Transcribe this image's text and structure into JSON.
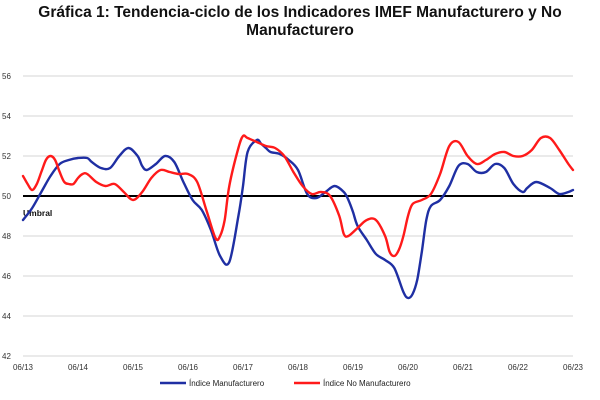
{
  "chart_data": {
    "type": "line",
    "title_line1": "Gráfica 1: Tendencia-ciclo de los Indicadores IMEF Manufacturero y No",
    "title_line2": "Manufacturero",
    "ylim": [
      42,
      56
    ],
    "y_ticks": [
      "42",
      "44",
      "46",
      "48",
      "50",
      "52",
      "54",
      "56"
    ],
    "x_tick_labels": [
      "06/13",
      "06/14",
      "06/15",
      "06/16",
      "06/17",
      "06/18",
      "06/19",
      "06/20",
      "06/21",
      "06/22",
      "06/23"
    ],
    "x_range": [
      0,
      120
    ],
    "grid": true,
    "threshold": {
      "value": 50,
      "label": "Umbral"
    },
    "legend_position": "bottom",
    "series": [
      {
        "name": "Índice Manufacturero",
        "color": "#1f2fa3",
        "x": [
          0,
          2,
          4,
          6,
          8,
          10,
          12,
          14,
          15,
          17,
          19,
          21,
          23,
          25,
          26,
          27,
          29,
          31,
          33,
          35,
          37,
          39,
          41,
          43,
          45,
          47,
          48,
          49,
          51,
          52,
          53,
          54,
          56,
          58,
          60,
          62,
          64,
          66,
          68,
          70,
          71,
          72,
          73,
          75,
          77,
          79,
          81,
          83,
          84,
          85,
          86,
          87,
          88,
          89,
          91,
          93,
          95,
          97,
          99,
          101,
          103,
          105,
          107,
          109,
          110,
          112,
          115,
          117,
          119,
          120
        ],
        "y": [
          48.8,
          49.4,
          50.2,
          51,
          51.6,
          51.8,
          51.9,
          51.9,
          51.7,
          51.4,
          51.4,
          52,
          52.4,
          52,
          51.5,
          51.3,
          51.6,
          52,
          51.7,
          50.7,
          49.8,
          49.3,
          48.3,
          47,
          46.7,
          49,
          50.5,
          52.2,
          52.8,
          52.6,
          52.4,
          52.2,
          52.1,
          51.8,
          51.3,
          50.1,
          49.9,
          50.2,
          50.5,
          50.2,
          49.8,
          49.2,
          48.5,
          47.8,
          47.1,
          46.8,
          46.4,
          45.2,
          44.9,
          45.1,
          45.8,
          47.2,
          48.8,
          49.5,
          49.8,
          50.5,
          51.5,
          51.6,
          51.2,
          51.2,
          51.6,
          51.4,
          50.6,
          50.2,
          50.4,
          50.7,
          50.4,
          50.1,
          50.2,
          50.3
        ]
      },
      {
        "name": "Índice No Manufacturero",
        "color": "#ff1a1a",
        "x": [
          0,
          1,
          2,
          3,
          4,
          5,
          6,
          7,
          8,
          9,
          10,
          11,
          12,
          13,
          14,
          16,
          18,
          20,
          22,
          24,
          26,
          28,
          30,
          32,
          34,
          36,
          38,
          40,
          42,
          43,
          44,
          45,
          47,
          48,
          49,
          51,
          53,
          55,
          57,
          59,
          61,
          63,
          65,
          67,
          69,
          70,
          71,
          73,
          75,
          77,
          79,
          80,
          81,
          82,
          83,
          84,
          85,
          87,
          89,
          91,
          93,
          95,
          97,
          99,
          101,
          103,
          105,
          107,
          109,
          111,
          113,
          115,
          117,
          119,
          120
        ],
        "y": [
          51,
          50.6,
          50.3,
          50.6,
          51.2,
          51.8,
          52,
          51.8,
          51.2,
          50.7,
          50.6,
          50.6,
          50.9,
          51.1,
          51.1,
          50.7,
          50.5,
          50.6,
          50.2,
          49.8,
          50.2,
          50.9,
          51.3,
          51.2,
          51.1,
          51.1,
          50.7,
          49.3,
          47.9,
          48,
          48.8,
          50.5,
          52.4,
          53,
          52.9,
          52.7,
          52.5,
          52.4,
          52,
          51.2,
          50.5,
          50.1,
          50.2,
          50,
          49,
          48.1,
          48,
          48.4,
          48.8,
          48.8,
          48,
          47.2,
          47,
          47.3,
          48,
          49,
          49.6,
          49.8,
          50.1,
          51.1,
          52.5,
          52.7,
          52,
          51.6,
          51.8,
          52.1,
          52.2,
          52,
          52,
          52.3,
          52.9,
          52.9,
          52.3,
          51.6,
          51.3
        ]
      }
    ]
  }
}
